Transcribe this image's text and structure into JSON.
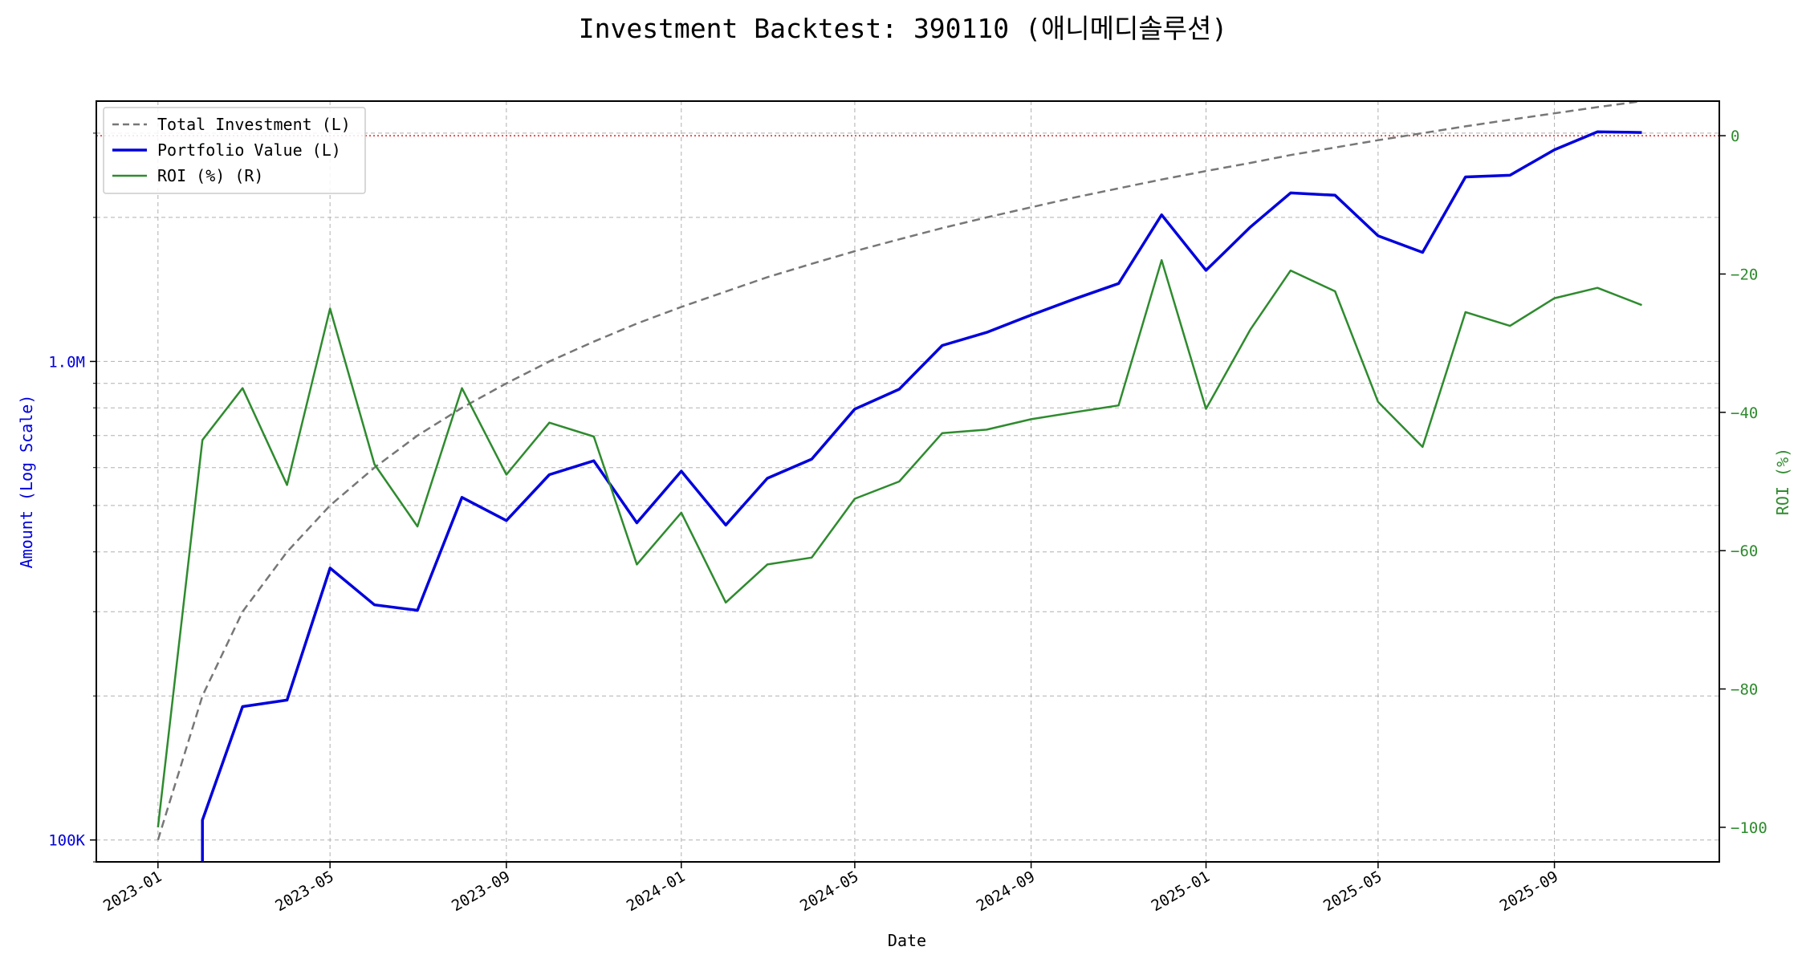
{
  "chart_data": {
    "type": "line",
    "title": "Investment Backtest: 390110 (애니메디솔루션)",
    "xlabel": "Date",
    "ylabel_left": "Amount (Log Scale)",
    "ylabel_right": "ROI (%)",
    "left_axis": {
      "scale": "log",
      "range": [
        90000,
        3500000
      ],
      "ticks": [
        100000,
        1000000
      ],
      "tick_labels": [
        "100K",
        "1.0M"
      ]
    },
    "right_axis": {
      "range": [
        -105,
        5
      ],
      "ticks": [
        0,
        -20,
        -40,
        -60,
        -80,
        -100
      ],
      "tick_labels": [
        "0",
        "−20",
        "−40",
        "−60",
        "−80",
        "−100"
      ]
    },
    "x_axis": {
      "range": [
        "2022-11-19",
        "2025-12-25"
      ],
      "ticks": [
        "2023-01-01",
        "2023-05-01",
        "2023-09-01",
        "2024-01-01",
        "2024-05-01",
        "2024-09-01",
        "2025-01-01",
        "2025-05-01",
        "2025-09-01"
      ],
      "tick_labels": [
        "2023-01",
        "2023-05",
        "2023-09",
        "2024-01",
        "2024-05",
        "2024-09",
        "2025-01",
        "2025-05",
        "2025-09"
      ]
    },
    "grid": true,
    "legend_position": "upper-left",
    "dates": [
      "2023-01-01",
      "2023-02-01",
      "2023-03-01",
      "2023-04-01",
      "2023-05-01",
      "2023-06-01",
      "2023-07-01",
      "2023-08-01",
      "2023-09-01",
      "2023-10-01",
      "2023-11-01",
      "2023-12-01",
      "2024-01-01",
      "2024-02-01",
      "2024-03-01",
      "2024-04-01",
      "2024-05-01",
      "2024-06-01",
      "2024-07-01",
      "2024-08-01",
      "2024-09-01",
      "2024-10-01",
      "2024-11-01",
      "2024-12-01",
      "2025-01-01",
      "2025-02-01",
      "2025-03-01",
      "2025-04-01",
      "2025-05-01",
      "2025-06-01",
      "2025-07-01",
      "2025-08-01",
      "2025-09-01",
      "2025-10-01",
      "2025-11-01"
    ],
    "reference_line": {
      "axis": "right",
      "value": 0,
      "color": "#e02020"
    },
    "series": [
      {
        "name": "Total Investment (L)",
        "axis": "left",
        "color": "#777777",
        "style": "dashed",
        "values": [
          100000,
          200000,
          300000,
          400000,
          500000,
          600000,
          700000,
          800000,
          900000,
          1000000,
          1100000,
          1200000,
          1300000,
          1400000,
          1500000,
          1600000,
          1700000,
          1800000,
          1900000,
          2000000,
          2100000,
          2200000,
          2300000,
          2400000,
          2500000,
          2600000,
          2700000,
          2800000,
          2900000,
          3000000,
          3100000,
          3200000,
          3300000,
          3400000,
          3500000
        ]
      },
      {
        "name": "Portfolio Value (L)",
        "axis": "left",
        "color": "#0000dd",
        "style": "solid",
        "values": [
          null,
          110000,
          190000,
          196000,
          370000,
          310000,
          302000,
          520000,
          465000,
          580000,
          620000,
          460000,
          590000,
          455000,
          570000,
          625000,
          795000,
          875000,
          1080000,
          1150000,
          1250000,
          1350000,
          1455000,
          2025000,
          1550000,
          1910000,
          2250000,
          2225000,
          1830000,
          1690000,
          2430000,
          2450000,
          2770000,
          3020000,
          3010000
        ]
      },
      {
        "name": "ROI (%) (R)",
        "axis": "right",
        "color": "#2e8b2e",
        "style": "solid",
        "values": [
          -100,
          -44,
          -36.5,
          -50.5,
          -25,
          -47.5,
          -56.5,
          -36.5,
          -49,
          -41.5,
          -43.5,
          -62,
          -54.5,
          -67.5,
          -62,
          -61,
          -52.5,
          -50,
          -43,
          -42.5,
          -41,
          -40,
          -39,
          -18,
          -39.5,
          -28,
          -19.5,
          -22.5,
          -38.5,
          -45,
          -25.5,
          -27.5,
          -23.5,
          -22,
          -24.5
        ]
      }
    ]
  }
}
